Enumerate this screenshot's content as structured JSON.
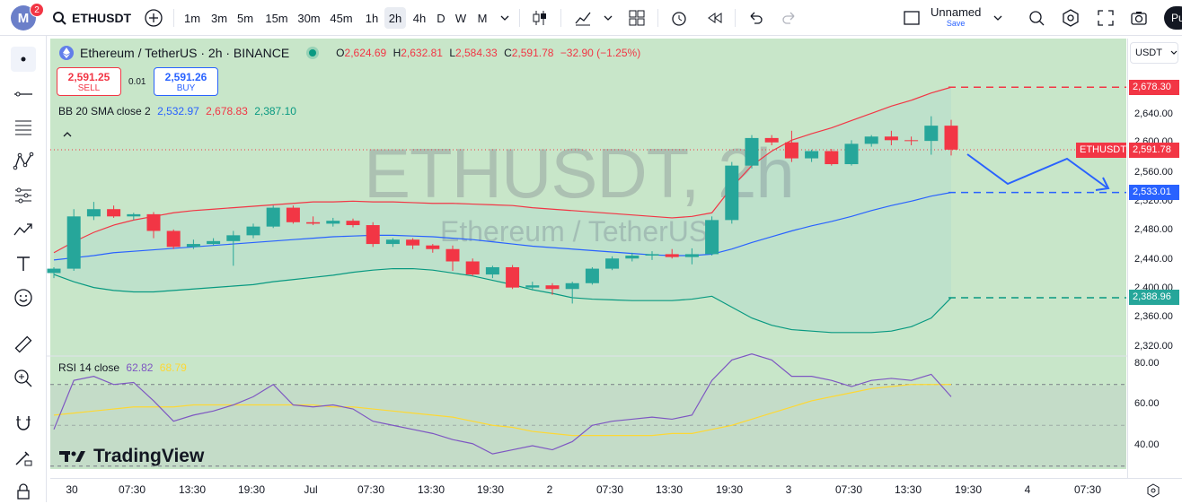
{
  "topbar": {
    "avatar_letter": "M",
    "notif_count": "2",
    "symbol": "ETHUSDT",
    "intervals": [
      "1m",
      "3m",
      "5m",
      "15m",
      "30m",
      "45m",
      "1h",
      "2h",
      "4h",
      "D",
      "W",
      "M"
    ],
    "active_interval": "2h",
    "layout_name": "Unnamed",
    "layout_sub": "Save",
    "publish_label": "Pu"
  },
  "legend": {
    "title": "Ethereum / TetherUS · 2h · BINANCE",
    "o_key": "O",
    "o": "2,624.69",
    "h_key": "H",
    "h": "2,632.81",
    "l_key": "L",
    "l": "2,584.33",
    "c_key": "C",
    "c": "2,591.78",
    "change": "−32.90 (−1.25%)"
  },
  "trade": {
    "sell_price": "2,591.25",
    "sell_label": "SELL",
    "buy_price": "2,591.26",
    "buy_label": "BUY",
    "spread": "0.01"
  },
  "bb": {
    "name": "BB 20 SMA close 2",
    "basis": "2,532.97",
    "upper": "2,678.83",
    "lower": "2,387.10"
  },
  "rsi": {
    "name": "RSI 14 close",
    "value": "62.82",
    "ma": "68.79"
  },
  "watermark": {
    "main": "ETHUSDT, 2h",
    "sub": "Ethereum / TetherUS"
  },
  "branding": "TradingView",
  "price_scale": {
    "unit": "USDT",
    "labels": [
      "2,640.00",
      "2,600.00",
      "2,560.00",
      "2,520.00",
      "2,480.00",
      "2,440.00",
      "2,400.00",
      "2,360.00",
      "2,320.00"
    ],
    "tags": {
      "upper": "2,678.30",
      "price": "2,591.78",
      "basis": "2,533.01",
      "lower": "2,388.96"
    },
    "symbol_tag": "ETHUSDT",
    "rsi_labels": [
      "80.00",
      "60.00",
      "40.00"
    ]
  },
  "time_scale": [
    "30",
    "07:30",
    "13:30",
    "19:30",
    "Jul",
    "07:30",
    "13:30",
    "19:30",
    "2",
    "07:30",
    "13:30",
    "19:30",
    "3",
    "07:30",
    "13:30",
    "19:30",
    "4",
    "07:30"
  ],
  "colors": {
    "up": "#26a69a",
    "down": "#f23645",
    "bb_basis": "#2962ff",
    "bb_upper": "#f23645",
    "bb_lower": "#089981",
    "rsi": "#7e57c2",
    "rsi_ma": "#fdd835",
    "bg": "#c8e6c9"
  },
  "chart_data": {
    "type": "candlestick",
    "candles": [
      {
        "o": 2422,
        "h": 2430,
        "l": 2415,
        "c": 2428
      },
      {
        "o": 2428,
        "h": 2510,
        "l": 2425,
        "c": 2500
      },
      {
        "o": 2500,
        "h": 2520,
        "l": 2495,
        "c": 2510
      },
      {
        "o": 2510,
        "h": 2515,
        "l": 2498,
        "c": 2500
      },
      {
        "o": 2500,
        "h": 2505,
        "l": 2495,
        "c": 2503
      },
      {
        "o": 2503,
        "h": 2506,
        "l": 2470,
        "c": 2480
      },
      {
        "o": 2480,
        "h": 2482,
        "l": 2455,
        "c": 2458
      },
      {
        "o": 2458,
        "h": 2468,
        "l": 2455,
        "c": 2462
      },
      {
        "o": 2462,
        "h": 2470,
        "l": 2460,
        "c": 2466
      },
      {
        "o": 2466,
        "h": 2480,
        "l": 2432,
        "c": 2474
      },
      {
        "o": 2474,
        "h": 2490,
        "l": 2470,
        "c": 2486
      },
      {
        "o": 2486,
        "h": 2515,
        "l": 2484,
        "c": 2512
      },
      {
        "o": 2512,
        "h": 2515,
        "l": 2490,
        "c": 2492
      },
      {
        "o": 2492,
        "h": 2500,
        "l": 2488,
        "c": 2490
      },
      {
        "o": 2490,
        "h": 2498,
        "l": 2486,
        "c": 2494
      },
      {
        "o": 2494,
        "h": 2497,
        "l": 2485,
        "c": 2488
      },
      {
        "o": 2488,
        "h": 2492,
        "l": 2458,
        "c": 2462
      },
      {
        "o": 2462,
        "h": 2470,
        "l": 2458,
        "c": 2468
      },
      {
        "o": 2468,
        "h": 2470,
        "l": 2455,
        "c": 2460
      },
      {
        "o": 2460,
        "h": 2462,
        "l": 2450,
        "c": 2455
      },
      {
        "o": 2455,
        "h": 2460,
        "l": 2425,
        "c": 2438
      },
      {
        "o": 2438,
        "h": 2442,
        "l": 2418,
        "c": 2420
      },
      {
        "o": 2420,
        "h": 2432,
        "l": 2415,
        "c": 2430
      },
      {
        "o": 2430,
        "h": 2433,
        "l": 2400,
        "c": 2402
      },
      {
        "o": 2402,
        "h": 2410,
        "l": 2398,
        "c": 2405
      },
      {
        "o": 2405,
        "h": 2408,
        "l": 2392,
        "c": 2400
      },
      {
        "o": 2400,
        "h": 2410,
        "l": 2380,
        "c": 2408
      },
      {
        "o": 2408,
        "h": 2430,
        "l": 2406,
        "c": 2428
      },
      {
        "o": 2428,
        "h": 2445,
        "l": 2426,
        "c": 2442
      },
      {
        "o": 2442,
        "h": 2450,
        "l": 2438,
        "c": 2446
      },
      {
        "o": 2446,
        "h": 2452,
        "l": 2440,
        "c": 2448
      },
      {
        "o": 2448,
        "h": 2455,
        "l": 2442,
        "c": 2444
      },
      {
        "o": 2444,
        "h": 2456,
        "l": 2434,
        "c": 2448
      },
      {
        "o": 2448,
        "h": 2500,
        "l": 2446,
        "c": 2495
      },
      {
        "o": 2495,
        "h": 2575,
        "l": 2490,
        "c": 2570
      },
      {
        "o": 2570,
        "h": 2612,
        "l": 2566,
        "c": 2608
      },
      {
        "o": 2608,
        "h": 2612,
        "l": 2598,
        "c": 2602
      },
      {
        "o": 2602,
        "h": 2618,
        "l": 2575,
        "c": 2580
      },
      {
        "o": 2580,
        "h": 2592,
        "l": 2575,
        "c": 2590
      },
      {
        "o": 2590,
        "h": 2593,
        "l": 2570,
        "c": 2572
      },
      {
        "o": 2572,
        "h": 2605,
        "l": 2570,
        "c": 2600
      },
      {
        "o": 2600,
        "h": 2612,
        "l": 2596,
        "c": 2610
      },
      {
        "o": 2610,
        "h": 2618,
        "l": 2598,
        "c": 2605
      },
      {
        "o": 2605,
        "h": 2610,
        "l": 2598,
        "c": 2604
      },
      {
        "o": 2604,
        "h": 2638,
        "l": 2585,
        "c": 2625
      },
      {
        "o": 2625,
        "h": 2633,
        "l": 2584,
        "c": 2592
      }
    ],
    "bb_upper": [
      2450,
      2465,
      2478,
      2488,
      2495,
      2500,
      2505,
      2508,
      2510,
      2512,
      2514,
      2516,
      2518,
      2520,
      2520,
      2521,
      2520,
      2520,
      2519,
      2518,
      2518,
      2517,
      2516,
      2515,
      2512,
      2510,
      2508,
      2506,
      2504,
      2502,
      2500,
      2498,
      2500,
      2505,
      2540,
      2570,
      2590,
      2605,
      2614,
      2622,
      2632,
      2642,
      2652,
      2660,
      2670,
      2678
    ],
    "bb_basis": [
      2440,
      2443,
      2446,
      2450,
      2452,
      2454,
      2456,
      2458,
      2460,
      2462,
      2464,
      2466,
      2468,
      2470,
      2472,
      2473,
      2474,
      2474,
      2473,
      2472,
      2470,
      2468,
      2465,
      2462,
      2459,
      2457,
      2455,
      2453,
      2451,
      2449,
      2447,
      2446,
      2446,
      2448,
      2455,
      2464,
      2472,
      2480,
      2487,
      2493,
      2500,
      2508,
      2515,
      2521,
      2528,
      2533
    ],
    "bb_lower": [
      2420,
      2410,
      2402,
      2398,
      2396,
      2396,
      2398,
      2400,
      2402,
      2404,
      2406,
      2410,
      2413,
      2416,
      2419,
      2423,
      2426,
      2428,
      2428,
      2426,
      2422,
      2418,
      2412,
      2406,
      2399,
      2394,
      2388,
      2386,
      2385,
      2384,
      2384,
      2384,
      2386,
      2390,
      2375,
      2360,
      2350,
      2344,
      2342,
      2340,
      2340,
      2340,
      2342,
      2348,
      2360,
      2388
    ],
    "rsi": [
      48,
      72,
      74,
      70,
      71,
      62,
      52,
      55,
      57,
      60,
      64,
      70,
      60,
      59,
      60,
      58,
      52,
      50,
      48,
      46,
      43,
      41,
      36,
      38,
      40,
      38,
      42,
      50,
      52,
      53,
      54,
      53,
      55,
      72,
      82,
      85,
      82,
      74,
      74,
      72,
      69,
      72,
      73,
      72,
      75,
      64
    ],
    "rsi_ma": [
      55,
      56,
      57,
      58,
      59,
      59,
      59,
      60,
      60,
      60,
      60,
      60,
      60,
      60,
      59,
      59,
      58,
      57,
      56,
      55,
      54,
      52,
      50,
      49,
      47,
      46,
      45,
      45,
      45,
      45,
      45,
      46,
      46,
      48,
      50,
      53,
      56,
      59,
      62,
      64,
      66,
      68,
      69,
      70,
      70,
      70
    ],
    "ylim": [
      2300,
      2700
    ]
  }
}
